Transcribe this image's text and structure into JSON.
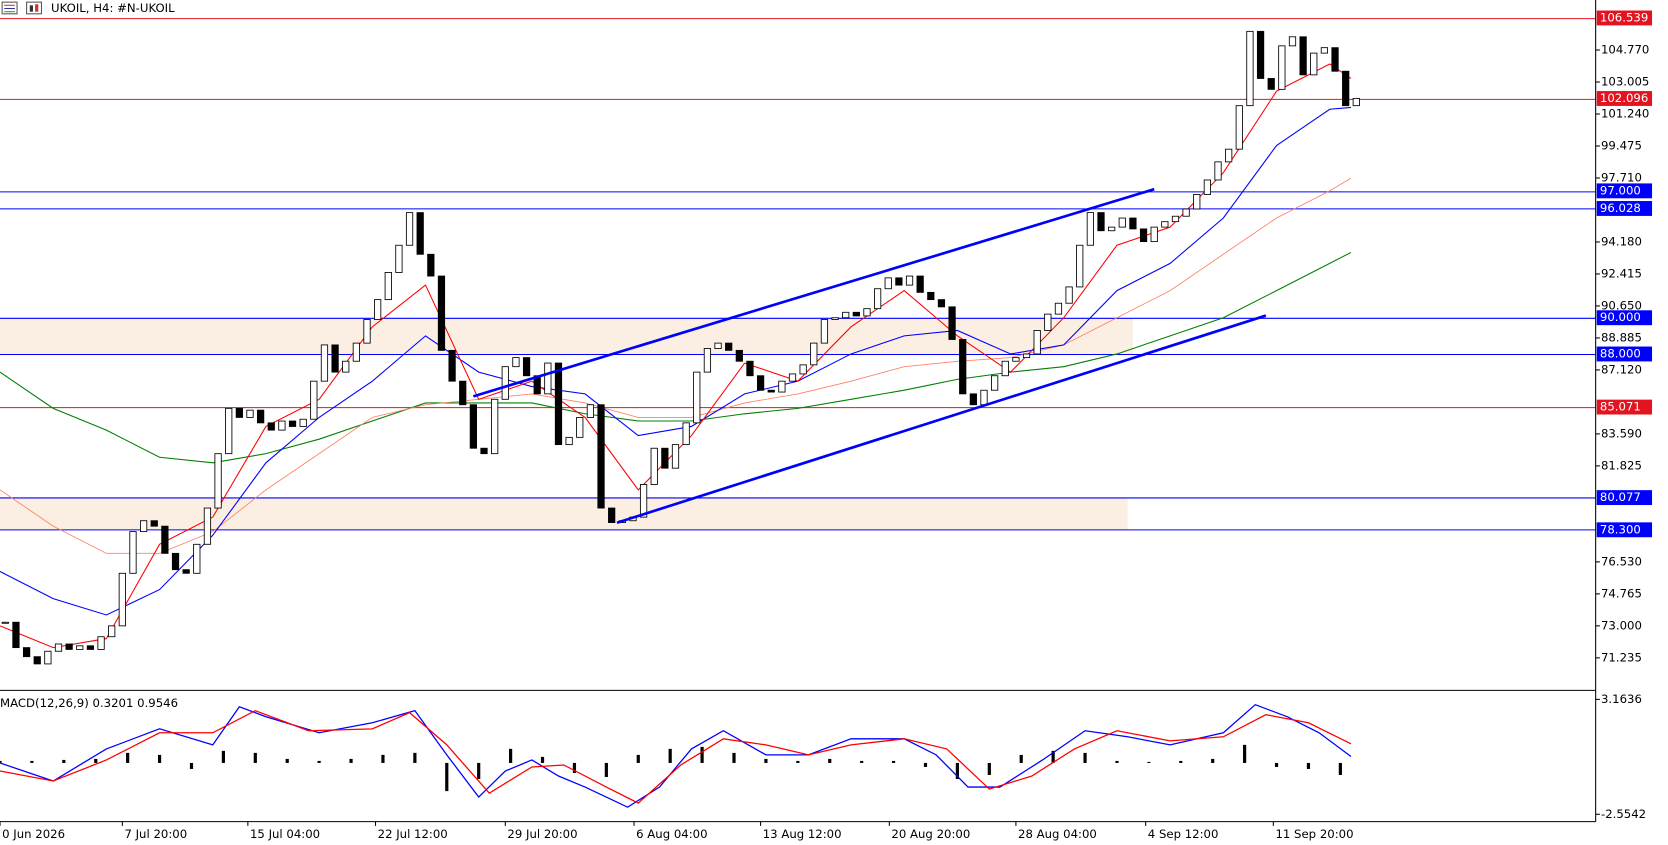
{
  "chart_data": [
    {
      "type": "candlestick",
      "title": "UKOIL, H4:  #N-UKOIL",
      "bull_color": "#ffffff",
      "bear_color": "#000000",
      "values": [
        73.2,
        71.8,
        71.3,
        70.9,
        71.6,
        72.0,
        71.7,
        71.9,
        71.7,
        72.4,
        73.0,
        75.9,
        78.2,
        78.8,
        78.5,
        77.0,
        76.1,
        75.9,
        77.5,
        79.5,
        82.5,
        85.0,
        84.5,
        84.9,
        84.2,
        83.8,
        84.3,
        84.0,
        84.4,
        86.5,
        88.5,
        87.0,
        87.6,
        88.6,
        89.9,
        91.0,
        92.5,
        94.0,
        95.8,
        93.5,
        92.3,
        88.2,
        86.5,
        85.2,
        82.8,
        82.5,
        85.5,
        87.3,
        87.8,
        86.8,
        85.8,
        87.5,
        83.0,
        83.4,
        84.5,
        85.2,
        79.5,
        78.7,
        78.8,
        79.0,
        80.8,
        82.8,
        81.7,
        83.0,
        84.2,
        87.0,
        88.3,
        88.6,
        88.2,
        87.6,
        86.8,
        86.0,
        85.9,
        86.5,
        86.9,
        87.4,
        88.6,
        89.9,
        90.0,
        90.3,
        90.1,
        90.5,
        91.6,
        92.2,
        91.8,
        92.3,
        91.4,
        91.0,
        90.6,
        88.8,
        85.8,
        85.2,
        86.0,
        86.8,
        87.6,
        87.8,
        88.0,
        89.3,
        90.2,
        90.8,
        91.7,
        94.0,
        95.8,
        94.8,
        95.0,
        95.5,
        94.9,
        94.2,
        95.0,
        95.3,
        95.6,
        96.0,
        96.8,
        97.6,
        98.6,
        99.3,
        101.7,
        105.8,
        103.2,
        102.6,
        105.0,
        105.5,
        103.4,
        104.6,
        104.9,
        103.6,
        101.7,
        102.1
      ],
      "xlim": [
        -0.5,
        149.5
      ],
      "xticks": [
        {
          "value": -0.5,
          "label": "0 Jun 2026"
        },
        {
          "value": 11,
          "label": "7 Jul 20:00"
        },
        {
          "value": 22.8,
          "label": "15 Jul 04:00"
        },
        {
          "value": 34.8,
          "label": "22 Jul 12:00"
        },
        {
          "value": 47,
          "label": "29 Jul 20:00"
        },
        {
          "value": 59.1,
          "label": "6 Aug 04:00"
        },
        {
          "value": 71,
          "label": "13 Aug 12:00"
        },
        {
          "value": 83.1,
          "label": "20 Aug 20:00"
        },
        {
          "value": 95,
          "label": "28 Aug 04:00"
        },
        {
          "value": 107.2,
          "label": "4 Sep 12:00"
        },
        {
          "value": 119.2,
          "label": "11 Sep 20:00"
        }
      ],
      "ylim": [
        69.53,
        107.53
      ],
      "yticks": [
        71.235,
        {
          "value": 73,
          "label": "73.000"
        },
        74.765,
        {
          "value": 76.53,
          "label": "76.530"
        },
        81.825,
        {
          "value": 83.59,
          "label": "83.590"
        },
        {
          "value": 87.12,
          "label": "87.120"
        },
        88.885,
        {
          "value": 90.65,
          "label": "90.650"
        },
        92.415,
        {
          "value": 94.18,
          "label": "94.180"
        },
        {
          "value": 97.71,
          "label": "97.710"
        },
        99.475,
        {
          "value": 101.24,
          "label": "101.240"
        },
        103.005,
        {
          "value": 104.77,
          "label": "104.770"
        }
      ],
      "ma_x": [
        -0.5,
        4.5,
        9.5,
        14.5,
        19.5,
        24.5,
        29.5,
        34.5,
        39.5,
        44.5,
        49.5,
        54.5,
        59.5,
        64.5,
        69.5,
        74.5,
        79.5,
        84.5,
        89.5,
        94.5,
        99.5,
        104.5,
        109.5,
        114.5,
        119.5,
        124.5,
        126.5
      ],
      "lines": [
        {
          "color": "#008000",
          "values": [
            87.0,
            85.0,
            83.8,
            82.3,
            82.0,
            82.5,
            83.3,
            84.3,
            85.3,
            85.3,
            85.3,
            84.7,
            84.3,
            84.3,
            84.7,
            85.0,
            85.5,
            86.0,
            86.6,
            87.0,
            87.3,
            88.0,
            89.0,
            90.0,
            91.5,
            93.0,
            93.6
          ]
        },
        {
          "color": "#ff8066",
          "values": [
            80.5,
            78.5,
            77.0,
            77.0,
            78.2,
            80.5,
            82.5,
            84.5,
            85.2,
            85.5,
            85.8,
            85.3,
            84.5,
            84.5,
            85.3,
            85.8,
            86.5,
            87.3,
            87.6,
            87.8,
            88.5,
            90.0,
            91.5,
            93.5,
            95.5,
            97.0,
            97.7
          ]
        },
        {
          "color": "#0000ff",
          "values": [
            76.0,
            74.5,
            73.6,
            75.0,
            78.0,
            82.0,
            84.5,
            86.5,
            89.0,
            87.0,
            86.2,
            85.8,
            83.5,
            84.0,
            85.8,
            86.5,
            88.0,
            89.0,
            89.3,
            88.0,
            88.5,
            91.5,
            93.0,
            95.5,
            99.5,
            101.5,
            101.6
          ]
        },
        {
          "color": "#ff0000",
          "values": [
            73.0,
            71.8,
            72.3,
            77.5,
            79.0,
            84.0,
            85.5,
            89.5,
            91.8,
            85.5,
            86.5,
            84.5,
            80.5,
            83.5,
            87.5,
            86.5,
            89.5,
            91.5,
            89.0,
            87.0,
            90.0,
            94.0,
            95.0,
            98.0,
            102.5,
            104.0,
            103.2
          ]
        }
      ],
      "zones": [
        {
          "from": 88,
          "to": 90,
          "x": [
            -0.5,
            106
          ]
        },
        {
          "from": 78.3,
          "to": 80.077,
          "x": [
            -0.5,
            105.5
          ]
        }
      ],
      "zone_color": "#fbeee3",
      "levels": [
        {
          "value": 106.539,
          "color": "#e3141f"
        },
        {
          "value": 102.096,
          "color": "#e3141f"
        },
        {
          "value": 97,
          "label": "97.000",
          "color": "#0000ff"
        },
        {
          "value": 96.028,
          "color": "#0000ff"
        },
        {
          "value": 90,
          "label": "90.000",
          "color": "#0000ff"
        },
        {
          "value": 88,
          "label": "88.000",
          "color": "#0000ff"
        },
        {
          "value": 85.071,
          "color": "#e3141f"
        },
        {
          "value": 80.077,
          "color": "#0000ff"
        },
        {
          "value": 78.3,
          "label": "78.300",
          "color": "#0000ff"
        }
      ],
      "trendlines": [
        {
          "color": "#0000ff",
          "x": [
            44,
            108
          ],
          "values": [
            85.66,
            97.09
          ]
        },
        {
          "color": "#0000ff",
          "x": [
            57.5,
            118.5
          ],
          "values": [
            78.69,
            90.12
          ]
        }
      ]
    },
    {
      "type": "macd",
      "title": "MACD(12,26,9) 0.3201 0.9546",
      "xlim": [
        -0.5,
        149.5
      ],
      "ylim": [
        -2.92,
        3.48
      ],
      "yticks": [
        3.1636,
        -2.5542
      ],
      "histogram": {
        "color": "#000000",
        "x": [
          -0.5,
          2.5,
          5.5,
          8.5,
          11.5,
          14.5,
          17.5,
          20.5,
          23.5,
          26.5,
          29.5,
          32.5,
          35.5,
          38.5,
          41.5,
          44.5,
          47.5,
          50.5,
          53.5,
          56.5,
          59.5,
          62.5,
          65.5,
          68.5,
          71.5,
          74.5,
          77.5,
          80.5,
          83.5,
          86.5,
          89.5,
          92.5,
          95.5,
          98.5,
          101.5,
          104.5,
          107.5,
          110.5,
          113.5,
          116.5,
          119.5,
          122.5,
          125.5
        ],
        "values": [
          0.1,
          0.1,
          0.15,
          0.2,
          0.5,
          0.4,
          -0.3,
          0.6,
          0.5,
          0.2,
          0.1,
          0.2,
          0.4,
          0.5,
          -1.4,
          -0.8,
          0.7,
          0.3,
          -0.5,
          -0.7,
          0.4,
          0.7,
          0.8,
          0.5,
          0.2,
          0.1,
          0.2,
          0.1,
          0.1,
          -0.2,
          -0.8,
          -0.6,
          0.4,
          0.6,
          0.5,
          0.1,
          0.05,
          0.1,
          0.2,
          0.9,
          -0.2,
          -0.3,
          -0.6
        ]
      },
      "series": [
        {
          "color": "#0000ff",
          "x": [
            -0.5,
            4.5,
            9.5,
            14.5,
            19.5,
            22,
            24.5,
            29.5,
            34.5,
            38.5,
            41.5,
            44.5,
            47,
            49.5,
            52,
            54.5,
            58.5,
            61.5,
            64.5,
            67.5,
            71.5,
            75.5,
            79.5,
            84.5,
            87.5,
            90.5,
            93.5,
            97.5,
            101.5,
            105.5,
            109.5,
            114.5,
            117.5,
            120.5,
            123.5,
            126.5
          ],
          "values": [
            0,
            -0.9,
            0.7,
            1.7,
            0.9,
            2.8,
            2.3,
            1.5,
            2.0,
            2.6,
            0.4,
            -1.7,
            -0.4,
            0.15,
            -0.65,
            -1.2,
            -2.2,
            -1.2,
            0.7,
            1.6,
            0.4,
            0.4,
            1.2,
            1.2,
            0.4,
            -1.2,
            -1.2,
            0.15,
            1.6,
            1.3,
            0.9,
            1.5,
            2.9,
            2.3,
            1.5,
            0.32
          ]
        },
        {
          "color": "#ff0000",
          "x": [
            -0.5,
            4.5,
            9.5,
            14.5,
            19.5,
            23.5,
            28.5,
            34.5,
            38,
            41.5,
            45.5,
            49.5,
            52.5,
            56.5,
            59.5,
            63.5,
            67.5,
            71.5,
            75.5,
            79.5,
            84.5,
            88.5,
            92.5,
            96.5,
            100.5,
            104.5,
            109.5,
            114.5,
            118.5,
            122.5,
            126.5
          ],
          "values": [
            -0.4,
            -0.9,
            0.15,
            1.5,
            1.5,
            2.6,
            1.6,
            1.7,
            2.5,
            0.9,
            -1.5,
            -0.2,
            -0.1,
            -1.2,
            -2.0,
            -0.1,
            1.2,
            0.9,
            0.4,
            0.9,
            1.2,
            0.7,
            -1.3,
            -0.65,
            0.7,
            1.6,
            1.1,
            1.3,
            2.4,
            2.0,
            0.95
          ]
        }
      ]
    }
  ]
}
